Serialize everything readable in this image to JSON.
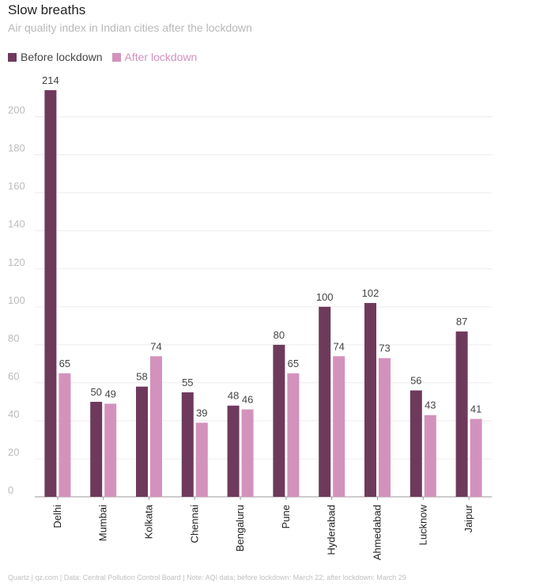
{
  "header": {
    "title": "Slow breaths",
    "subtitle": "Air quality index in Indian cities after the lockdown"
  },
  "footer": "Quartz | qz.com | Data: Central Pollution Control Board | Note: AQI data; before lockdown: March 22; after lockdown: March 29",
  "colors": {
    "before": "#6e3a5c",
    "after": "#d392bc",
    "grid": "#ececec",
    "axis": "#9a9a9a"
  },
  "chart_data": {
    "type": "bar",
    "title": "Slow breaths",
    "subtitle": "Air quality index in Indian cities after the lockdown",
    "categories": [
      "Delhi",
      "Mumbai",
      "Kolkata",
      "Chennai",
      "Bengaluru",
      "Pune",
      "Hyderabad",
      "Ahmedabad",
      "Lucknow",
      "Jaipur"
    ],
    "series": [
      {
        "name": "Before lockdown",
        "values": [
          214,
          50,
          58,
          55,
          48,
          80,
          100,
          102,
          56,
          87
        ]
      },
      {
        "name": "After lockdown",
        "values": [
          65,
          49,
          74,
          39,
          46,
          65,
          74,
          73,
          43,
          41
        ]
      }
    ],
    "yticks": [
      0,
      20,
      40,
      60,
      80,
      100,
      120,
      140,
      160,
      180,
      200
    ],
    "ylim": [
      0,
      214
    ],
    "xlabel": "",
    "ylabel": "",
    "grid": true,
    "legend": "top-left"
  }
}
